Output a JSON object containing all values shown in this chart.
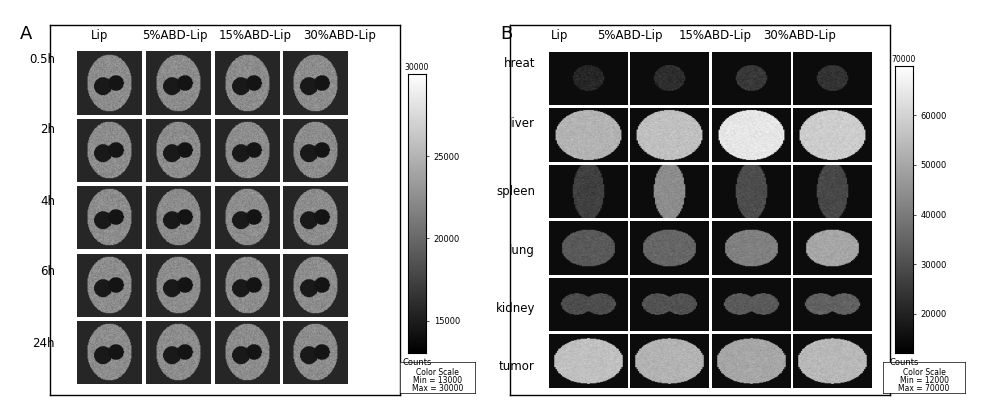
{
  "panel_A": {
    "label": "A",
    "col_labels": [
      "Lip",
      "5%ABD-Lip",
      "15%ABD-Lip",
      "30%ABD-Lip"
    ],
    "row_labels": [
      "0.5h",
      "2h",
      "4h",
      "6h",
      "24h"
    ],
    "colorbar_ticks": [
      15000,
      20000,
      25000
    ],
    "colorbar_top_label": "30000",
    "colorbar_bottom_label": "Counts",
    "colorscale_box": "Color Scale\nMin = 13000\nMax = 30000",
    "bg_color": "#c8c8c8",
    "panel_bg": "#000000"
  },
  "panel_B": {
    "label": "B",
    "col_labels": [
      "Lip",
      "5%ABD-Lip",
      "15%ABD-Lip",
      "30%ABD-Lip"
    ],
    "row_labels": [
      "hreat",
      "liver",
      "spleen",
      "lung",
      "kidney",
      "tumor"
    ],
    "colorbar_ticks": [
      20000,
      30000,
      40000,
      50000,
      60000
    ],
    "colorbar_top_label": "70000",
    "colorbar_bottom_label": "Counts",
    "colorscale_box": "Color Scale\nMin = 12000\nMax = 70000",
    "bg_color": "#c8c8c8",
    "panel_bg": "#000000"
  },
  "figure_bg": "#ffffff",
  "border_color": "#000000",
  "label_fontsize": 10,
  "tick_fontsize": 7,
  "col_header_fontsize": 9
}
